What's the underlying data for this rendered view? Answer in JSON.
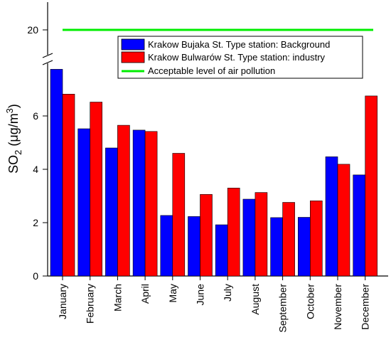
{
  "chart_data": {
    "type": "bar",
    "title": "",
    "ylabel": {
      "prefix": "SO",
      "sub": "2",
      "mid": " (μg/m",
      "sup": "3",
      "suffix": ")"
    },
    "xlabel": "",
    "categories": [
      "January",
      "February",
      "March",
      "April",
      "May",
      "June",
      "July",
      "August",
      "September",
      "October",
      "November",
      "December"
    ],
    "series": [
      {
        "name": "Krakow Bujaka St. Type station: Background",
        "color": "#0000ff",
        "values": [
          7.75,
          5.52,
          4.8,
          5.47,
          2.27,
          2.23,
          1.92,
          2.88,
          2.19,
          2.2,
          4.47,
          3.79
        ]
      },
      {
        "name": "Krakow Bulwarów St.  Type station: industry",
        "color": "#ff0000",
        "values": [
          6.82,
          6.52,
          5.65,
          5.42,
          4.6,
          3.06,
          3.3,
          3.13,
          2.76,
          2.82,
          4.19,
          6.75
        ]
      }
    ],
    "reference_line": {
      "name": "Acceptable level of air pollution",
      "value": 20,
      "color": "#00ee00"
    },
    "ylim_lower": [
      0,
      7.8
    ],
    "ylim_upper_tick": 20,
    "yticks_lower": [
      "0",
      "2",
      "4",
      "6"
    ],
    "ytick_upper": "20",
    "axis_break": true,
    "legend_position": "top-right"
  }
}
